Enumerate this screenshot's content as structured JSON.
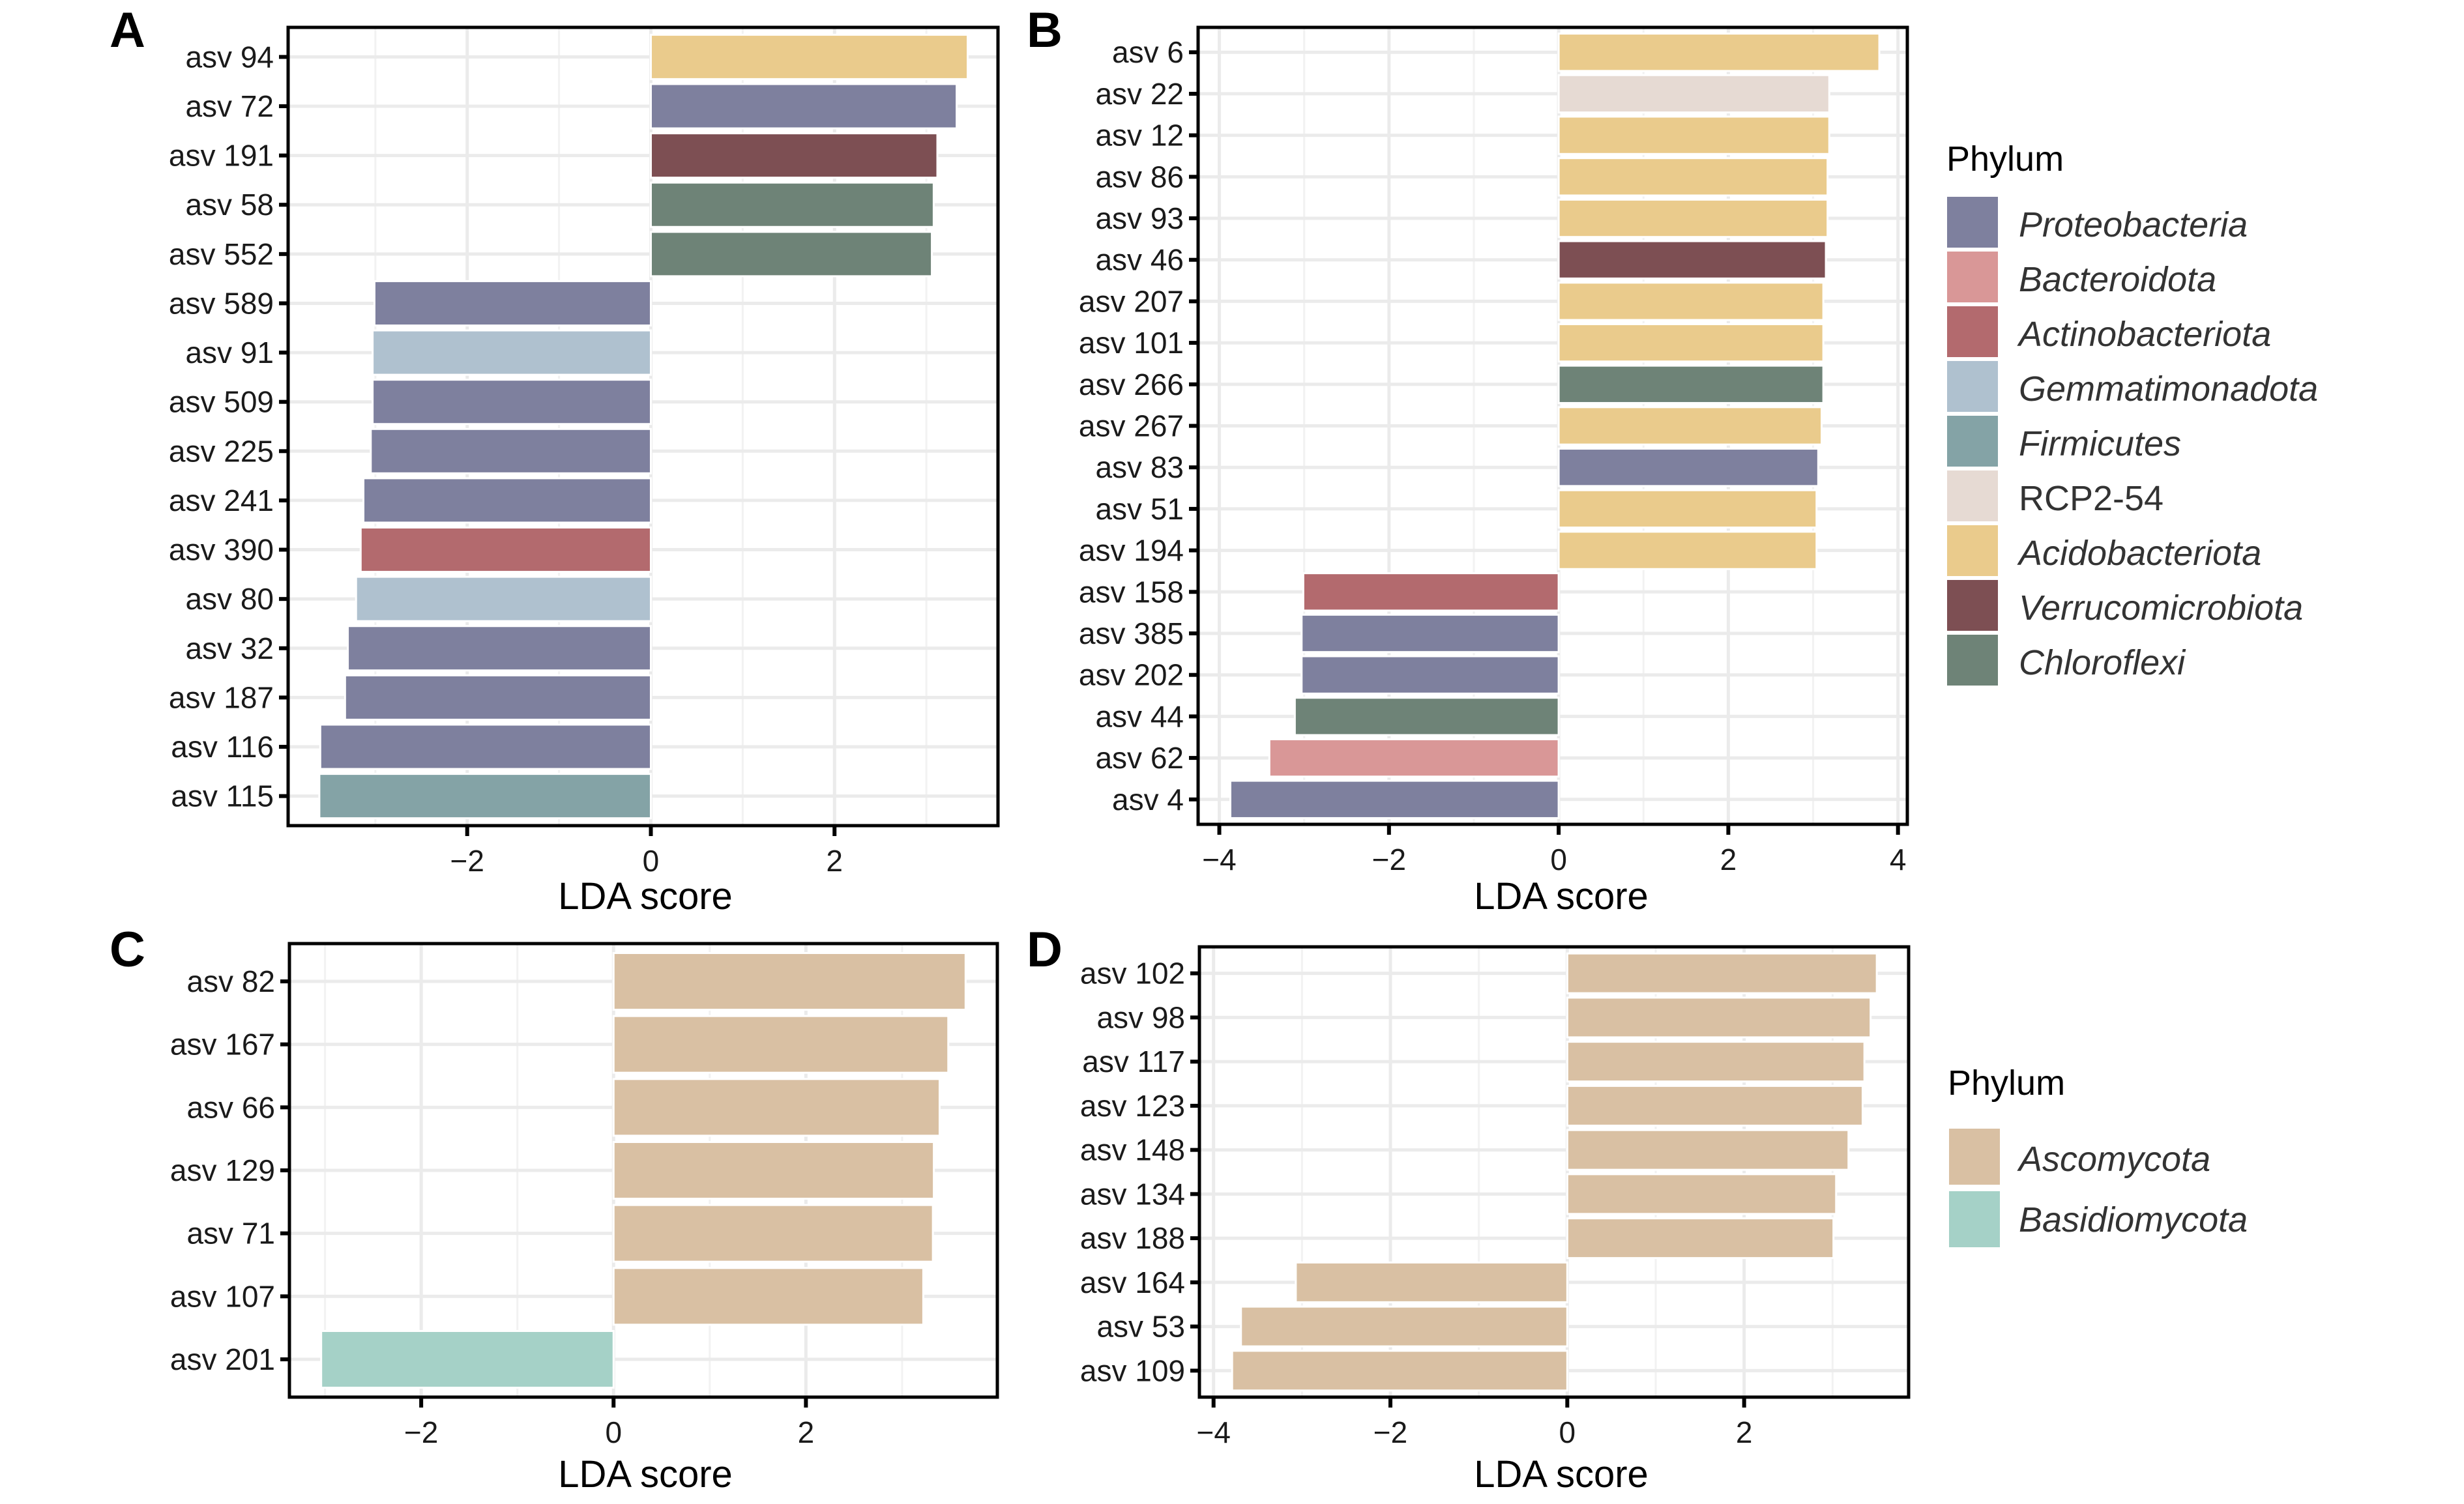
{
  "figure": {
    "panel_letters": [
      "A",
      "B",
      "C",
      "D"
    ],
    "x_axis_title": "LDA score"
  },
  "legends": [
    {
      "title": "Phylum",
      "items": [
        {
          "label": "Proteobacteria",
          "color": "#7e809e",
          "italic": true
        },
        {
          "label": "Bacteroidota",
          "color": "#d99797",
          "italic": true
        },
        {
          "label": "Actinobacteriota",
          "color": "#b36a6e",
          "italic": true
        },
        {
          "label": "Gemmatimonadota",
          "color": "#afc1cf",
          "italic": true
        },
        {
          "label": "Firmicutes",
          "color": "#84a3a6",
          "italic": true
        },
        {
          "label": "RCP2-54",
          "color": "#e6dad3",
          "italic": false
        },
        {
          "label": "Acidobacteriota",
          "color": "#eacb8c",
          "italic": true
        },
        {
          "label": "Verrucomicrobiota",
          "color": "#7d4f53",
          "italic": true
        },
        {
          "label": "Chloroflexi",
          "color": "#6e8377",
          "italic": true
        }
      ]
    },
    {
      "title": "Phylum",
      "items": [
        {
          "label": "Ascomycota",
          "color": "#d9c0a3",
          "italic": true
        },
        {
          "label": "Basidiomycota",
          "color": "#a5d1c7",
          "italic": true
        }
      ]
    }
  ],
  "chart_data": [
    {
      "panel": "A",
      "type": "bar",
      "orientation": "horizontal",
      "xlabel": "LDA score",
      "ylabel": "",
      "xlim": [
        -3.95,
        3.78
      ],
      "xticks": [
        -2,
        0,
        2
      ],
      "grid": true,
      "legend": "Phylum (bacteria), right",
      "categories": [
        "asv 94",
        "asv 72",
        "asv 191",
        "asv 58",
        "asv 552",
        "asv 589",
        "asv 91",
        "asv 509",
        "asv 225",
        "asv 241",
        "asv 390",
        "asv 80",
        "asv 32",
        "asv 187",
        "asv 116",
        "asv 115"
      ],
      "values": [
        3.45,
        3.33,
        3.12,
        3.08,
        3.06,
        -3.01,
        -3.03,
        -3.03,
        -3.05,
        -3.13,
        -3.16,
        -3.21,
        -3.3,
        -3.33,
        -3.6,
        -3.61
      ],
      "phylum": [
        "Acidobacteriota",
        "Proteobacteria",
        "Verrucomicrobiota",
        "Chloroflexi",
        "Chloroflexi",
        "Proteobacteria",
        "Gemmatimonadota",
        "Proteobacteria",
        "Proteobacteria",
        "Proteobacteria",
        "Actinobacteriota",
        "Gemmatimonadota",
        "Proteobacteria",
        "Proteobacteria",
        "Proteobacteria",
        "Firmicutes"
      ]
    },
    {
      "panel": "B",
      "type": "bar",
      "orientation": "horizontal",
      "xlabel": "LDA score",
      "ylabel": "",
      "xlim": [
        -4.25,
        4.11
      ],
      "xticks": [
        -4,
        -2,
        0,
        2,
        4
      ],
      "grid": true,
      "legend": "Phylum (bacteria), right",
      "categories": [
        "asv 6",
        "asv 22",
        "asv 12",
        "asv 86",
        "asv 93",
        "asv 46",
        "asv 207",
        "asv 101",
        "asv 266",
        "asv 267",
        "asv 83",
        "asv 51",
        "asv 194",
        "asv 158",
        "asv 385",
        "asv 202",
        "asv 44",
        "asv 62",
        "asv 4"
      ],
      "values": [
        3.78,
        3.19,
        3.19,
        3.17,
        3.17,
        3.15,
        3.12,
        3.12,
        3.12,
        3.1,
        3.06,
        3.04,
        3.04,
        -3.01,
        -3.03,
        -3.03,
        -3.11,
        -3.41,
        -3.87
      ],
      "phylum": [
        "Acidobacteriota",
        "RCP2-54",
        "Acidobacteriota",
        "Acidobacteriota",
        "Acidobacteriota",
        "Verrucomicrobiota",
        "Acidobacteriota",
        "Acidobacteriota",
        "Chloroflexi",
        "Acidobacteriota",
        "Proteobacteria",
        "Acidobacteriota",
        "Acidobacteriota",
        "Actinobacteriota",
        "Proteobacteria",
        "Proteobacteria",
        "Chloroflexi",
        "Bacteroidota",
        "Proteobacteria"
      ]
    },
    {
      "panel": "C",
      "type": "bar",
      "orientation": "horizontal",
      "xlabel": "LDA score",
      "ylabel": "",
      "xlim": [
        -3.37,
        3.99
      ],
      "xticks": [
        -2,
        0,
        2
      ],
      "grid": true,
      "legend": "Phylum (fungi), right",
      "categories": [
        "asv 82",
        "asv 167",
        "asv 66",
        "asv 129",
        "asv 71",
        "asv 107",
        "asv 201"
      ],
      "values": [
        3.66,
        3.48,
        3.39,
        3.33,
        3.32,
        3.22,
        -3.04
      ],
      "phylum": [
        "Ascomycota",
        "Ascomycota",
        "Ascomycota",
        "Ascomycota",
        "Ascomycota",
        "Ascomycota",
        "Basidiomycota"
      ]
    },
    {
      "panel": "D",
      "type": "bar",
      "orientation": "horizontal",
      "xlabel": "LDA score",
      "ylabel": "",
      "xlim": [
        -4.16,
        3.86
      ],
      "xticks": [
        -4,
        -2,
        0,
        2
      ],
      "grid": true,
      "legend": "Phylum (fungi), right",
      "categories": [
        "asv 102",
        "asv 98",
        "asv 117",
        "asv 123",
        "asv 148",
        "asv 134",
        "asv 188",
        "asv 164",
        "asv 53",
        "asv 109"
      ],
      "values": [
        3.5,
        3.43,
        3.36,
        3.34,
        3.18,
        3.04,
        3.01,
        -3.07,
        -3.69,
        -3.79
      ],
      "phylum": [
        "Ascomycota",
        "Ascomycota",
        "Ascomycota",
        "Ascomycota",
        "Ascomycota",
        "Ascomycota",
        "Ascomycota",
        "Ascomycota",
        "Ascomycota",
        "Ascomycota"
      ]
    }
  ]
}
